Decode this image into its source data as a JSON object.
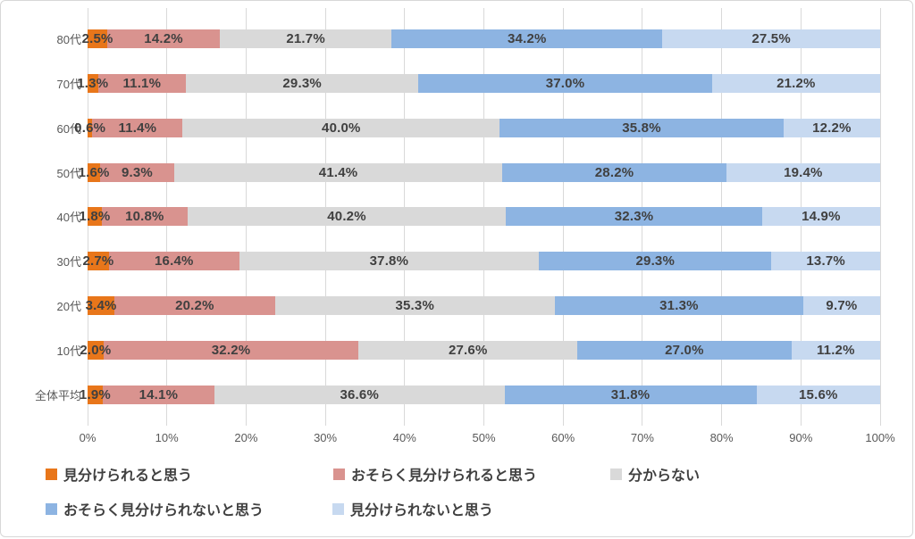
{
  "chart_data": {
    "type": "bar",
    "stacked": true,
    "orientation": "horizontal",
    "title": "",
    "xlabel": "",
    "ylabel": "",
    "xlim": [
      0,
      100
    ],
    "grid": true,
    "legend_position": "bottom",
    "value_suffix": "%",
    "categories": [
      "80代",
      "70代",
      "60代",
      "50代",
      "40代",
      "30代",
      "20代",
      "10代",
      "全体平均"
    ],
    "series": [
      {
        "name": "見分けられると思う",
        "color": "#e8761a",
        "values": [
          2.5,
          1.3,
          0.6,
          1.6,
          1.8,
          2.7,
          3.4,
          2.0,
          1.9
        ]
      },
      {
        "name": "おそらく見分けられると思う",
        "color": "#d9938f",
        "values": [
          14.2,
          11.1,
          11.4,
          9.3,
          10.8,
          16.4,
          20.2,
          32.2,
          14.1
        ]
      },
      {
        "name": "分からない",
        "color": "#d9d9d9",
        "values": [
          21.7,
          29.3,
          40.0,
          41.4,
          40.2,
          37.8,
          35.3,
          27.6,
          36.6
        ]
      },
      {
        "name": "おそらく見分けられないと思う",
        "color": "#8db4e2",
        "values": [
          34.2,
          37.0,
          35.8,
          28.2,
          32.3,
          29.3,
          31.3,
          27.0,
          31.8
        ]
      },
      {
        "name": "見分けられないと思う",
        "color": "#c7d9f0",
        "values": [
          27.5,
          21.2,
          12.2,
          19.4,
          14.9,
          13.7,
          9.7,
          11.2,
          15.6
        ]
      }
    ],
    "data_labels": [
      "2.5%",
      "14.2%",
      "21.7%",
      "34.2%",
      "27.5%",
      "1.3%",
      "11.1%",
      "29.3%",
      "37.0%",
      "21.2%",
      "0.6%",
      "11.4%",
      "40.0%",
      "35.8%",
      "12.2%",
      "1.6%",
      "9.3%",
      "41.4%",
      "28.2%",
      "19.4%",
      "1.8%",
      "10.8%",
      "40.2%",
      "32.3%",
      "14.9%",
      "2.7%",
      "16.4%",
      "37.8%",
      "29.3%",
      "13.7%",
      "3.4%",
      "20.2%",
      "35.3%",
      "31.3%",
      "9.7%",
      "2.0%",
      "32.2%",
      "27.6%",
      "27.0%",
      "11.2%",
      "1.9%",
      "14.1%",
      "36.6%",
      "31.8%",
      "15.6%"
    ],
    "x_axis_ticks": [
      "0%",
      "10%",
      "20%",
      "30%",
      "40%",
      "50%",
      "60%",
      "70%",
      "80%",
      "90%",
      "100%"
    ],
    "colors": {
      "gridline": "#d9d9d9",
      "frame_border": "#d7d7d7",
      "data_label_text": "#404040",
      "axis_text": "#595959",
      "legend_text": "#404040",
      "background": "#ffffff"
    }
  }
}
